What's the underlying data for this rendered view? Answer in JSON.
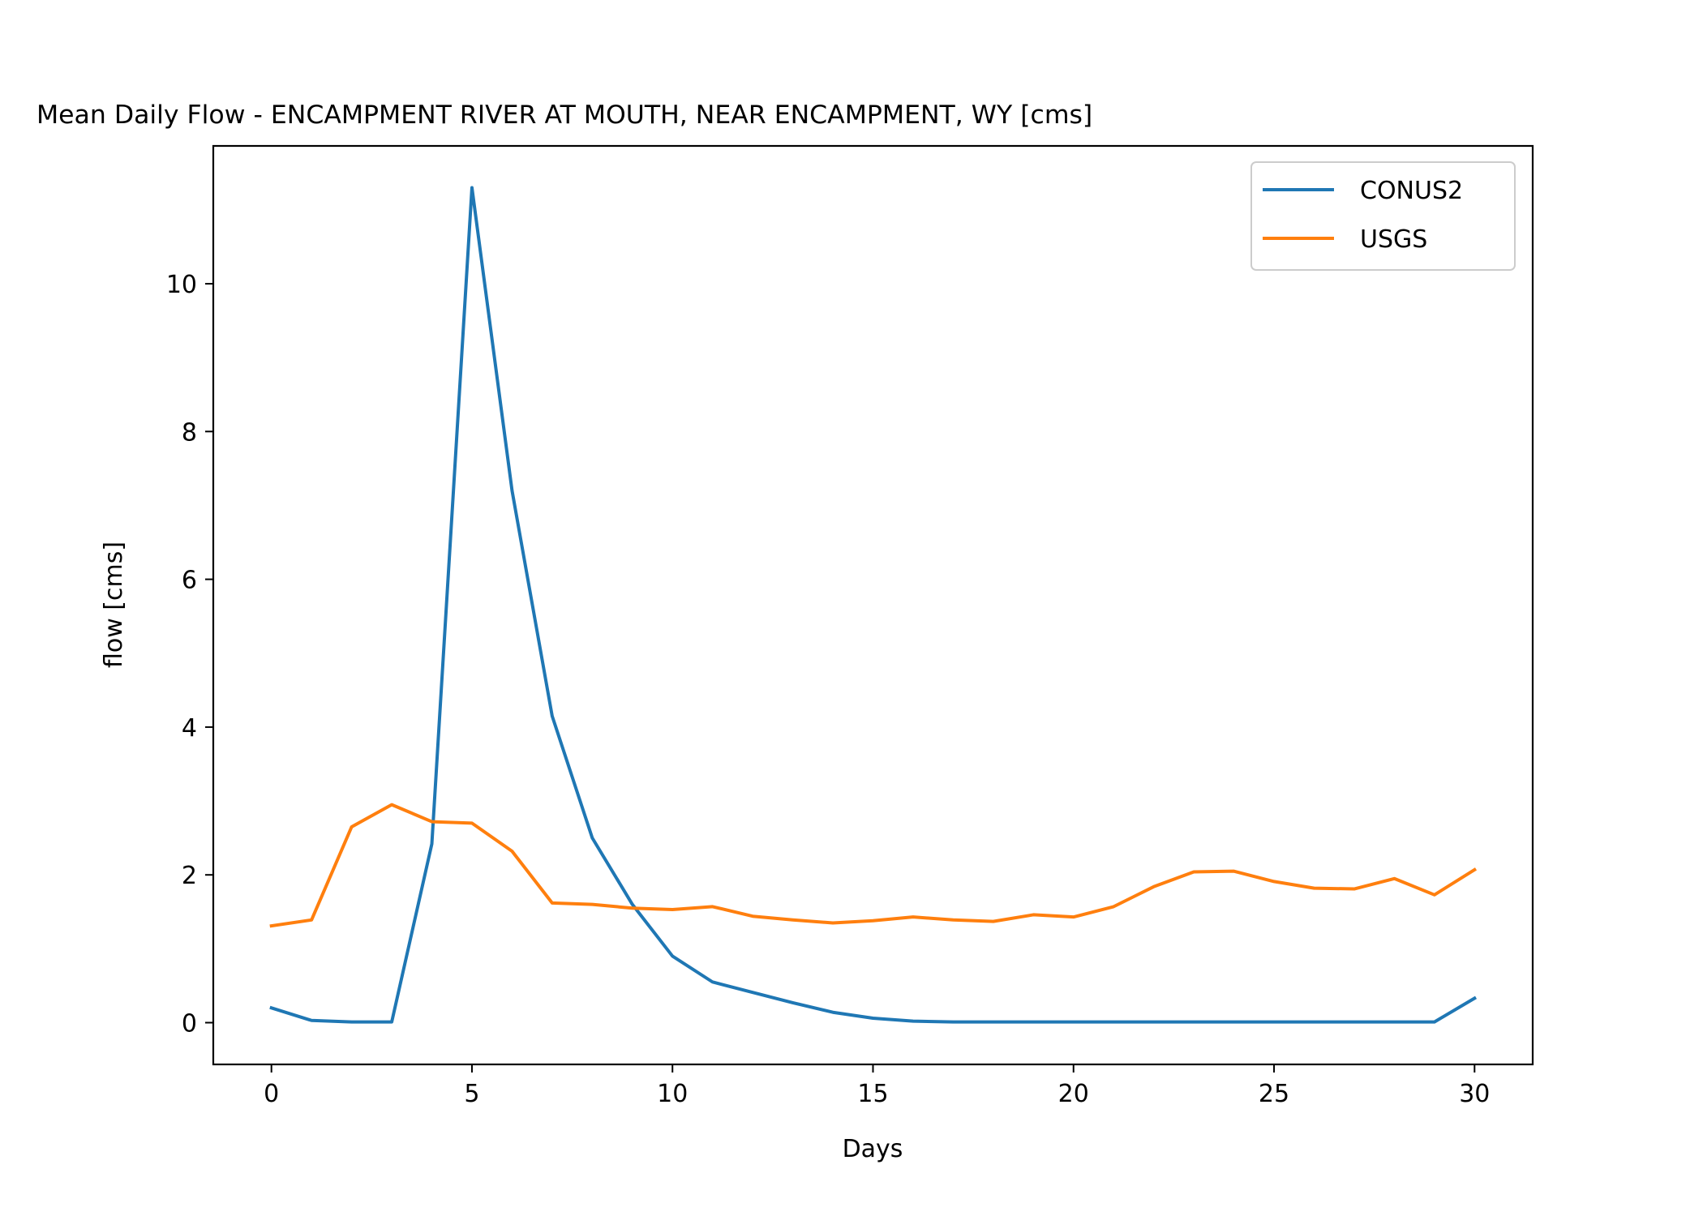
{
  "chart_data": {
    "type": "line",
    "title": "Mean Daily Flow - ENCAMPMENT RIVER AT MOUTH, NEAR ENCAMPMENT, WY [cms]",
    "xlabel": "Days",
    "ylabel": "flow [cms]",
    "xlim": [
      -1.45,
      31.45
    ],
    "ylim": [
      -0.565,
      11.865
    ],
    "xticks": [
      0,
      5,
      10,
      15,
      20,
      25,
      30
    ],
    "xtick_labels": [
      "0",
      "5",
      "10",
      "15",
      "20",
      "25",
      "30"
    ],
    "yticks": [
      0,
      2,
      4,
      6,
      8,
      10
    ],
    "ytick_labels": [
      "0",
      "2",
      "4",
      "6",
      "8",
      "10"
    ],
    "grid": false,
    "legend_position": "top-right",
    "x": [
      0,
      1,
      2,
      3,
      4,
      5,
      6,
      7,
      8,
      9,
      10,
      11,
      12,
      13,
      14,
      15,
      16,
      17,
      18,
      19,
      20,
      21,
      22,
      23,
      24,
      25,
      26,
      27,
      28,
      29,
      30
    ],
    "series": [
      {
        "name": "CONUS2",
        "color": "#1f77b4",
        "values": [
          0.2,
          0.03,
          0.01,
          0.01,
          2.42,
          11.3,
          7.2,
          4.15,
          2.5,
          1.6,
          0.9,
          0.55,
          0.41,
          0.27,
          0.14,
          0.06,
          0.02,
          0.01,
          0.01,
          0.01,
          0.01,
          0.01,
          0.01,
          0.01,
          0.01,
          0.01,
          0.01,
          0.01,
          0.01,
          0.01,
          0.33
        ]
      },
      {
        "name": "USGS",
        "color": "#ff7f0e",
        "values": [
          1.31,
          1.39,
          2.65,
          2.95,
          2.72,
          2.7,
          2.32,
          1.62,
          1.6,
          1.55,
          1.53,
          1.57,
          1.44,
          1.39,
          1.35,
          1.38,
          1.43,
          1.39,
          1.37,
          1.46,
          1.43,
          1.57,
          1.84,
          2.04,
          2.05,
          1.91,
          1.82,
          1.81,
          1.95,
          1.73,
          2.07
        ]
      }
    ]
  }
}
